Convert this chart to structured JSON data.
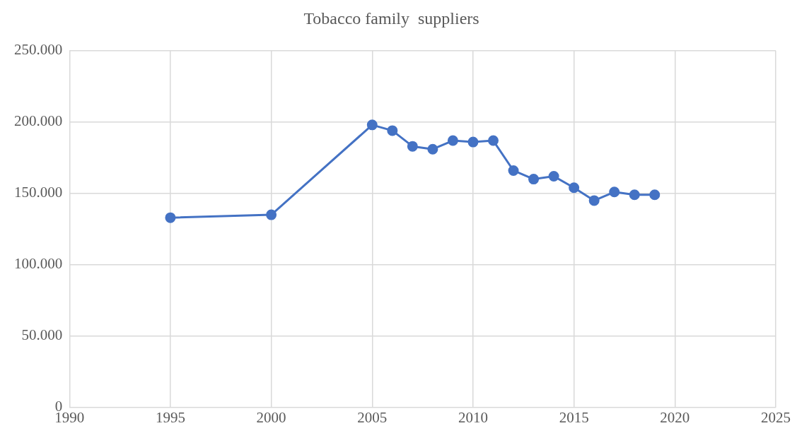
{
  "chart_data": {
    "type": "line",
    "title": "Tobacco family  suppliers",
    "x": [
      1995,
      2000,
      2005,
      2006,
      2007,
      2008,
      2009,
      2010,
      2011,
      2012,
      2013,
      2014,
      2015,
      2016,
      2017,
      2018,
      2019
    ],
    "series": [
      {
        "color": "#4472c4",
        "values": [
          133000,
          135000,
          198000,
          194000,
          183000,
          181000,
          187000,
          186000,
          187000,
          166000,
          160000,
          162000,
          154000,
          145000,
          151000,
          149000,
          149000
        ]
      }
    ],
    "xlim": [
      1990,
      2025
    ],
    "xticks": [
      1990,
      1995,
      2000,
      2005,
      2010,
      2015,
      2020,
      2025
    ],
    "ylim": [
      0,
      250000
    ],
    "yticks": [
      0,
      {
        "value": 50000,
        "label": "50.000"
      },
      {
        "value": 100000,
        "label": "100.000"
      },
      {
        "value": 150000,
        "label": "150.000"
      },
      {
        "value": 200000,
        "label": "200.000"
      },
      {
        "value": 250000,
        "label": "250.000"
      }
    ],
    "grid": true,
    "legend": false,
    "marker": "circle",
    "line_style": "solid"
  }
}
